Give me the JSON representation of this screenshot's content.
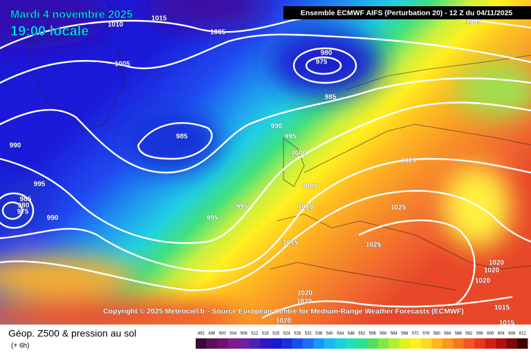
{
  "header": {
    "date": "Mardi 4 novembre 2025",
    "time": "19:00 locale",
    "model": "Ensemble ECMWF AIFS  (Perturbation 20)  -  12 Z du 04/11/2025"
  },
  "isobar_labels": [
    "1015",
    "1010",
    "1005",
    "1005",
    "1005",
    "980",
    "975",
    "985",
    "990",
    "995",
    "985",
    "1000",
    "990",
    "1020",
    "995",
    "1005",
    "985",
    "980",
    "975",
    "990",
    "995",
    "995",
    "1010",
    "1025",
    "1015",
    "1025",
    "1020",
    "1020",
    "1020",
    "1020",
    "1020",
    "1015",
    "1020",
    "1015"
  ],
  "copyright": "Copyright © 2025 Meteociel.fr - Source European Centre for Medium-Range Weather Forecasts (ECMWF)",
  "legend": {
    "title": "Géop. Z500 & pression au sol",
    "lead": "(+ 6h)",
    "scale": [
      492,
      496,
      500,
      504,
      508,
      512,
      516,
      520,
      524,
      528,
      532,
      536,
      540,
      544,
      548,
      552,
      556,
      560,
      564,
      568,
      572,
      576,
      580,
      584,
      588,
      592,
      596,
      600,
      604,
      608,
      612
    ]
  }
}
